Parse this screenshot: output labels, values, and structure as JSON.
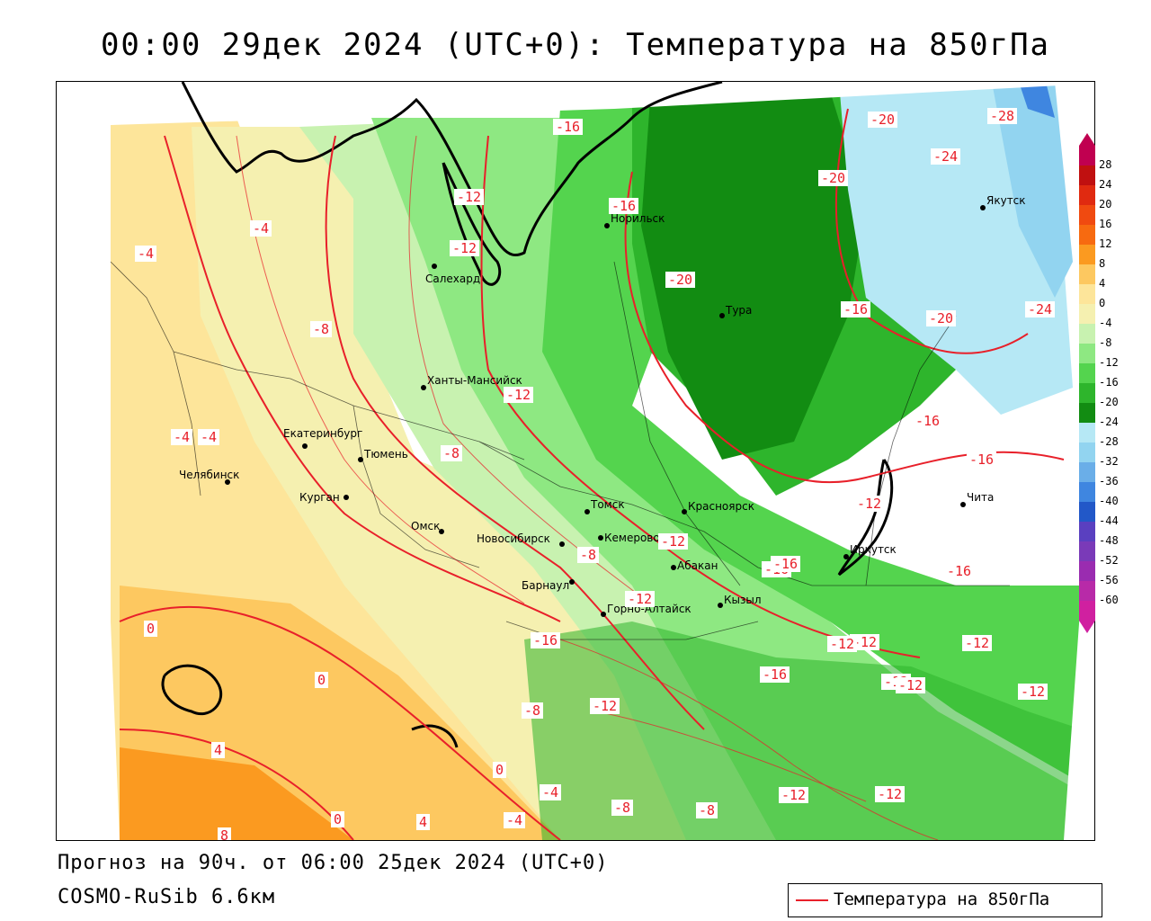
{
  "title": "00:00 29дек 2024 (UTC+0): Температура на 850гПа",
  "footer": {
    "forecast": "Прогноз на 90ч. от 06:00 25дек 2024 (UTC+0)",
    "model": "COSMO-RuSib 6.6км"
  },
  "legend": {
    "label": "Температура на 850гПа",
    "line_color": "#e8202a"
  },
  "colorbar": {
    "ticks": [
      "28",
      "24",
      "20",
      "16",
      "12",
      "8",
      "4",
      "0",
      "-4",
      "-8",
      "-12",
      "-16",
      "-20",
      "-24",
      "-28",
      "-32",
      "-36",
      "-40",
      "-44",
      "-48",
      "-52",
      "-56",
      "-60"
    ],
    "colors": [
      "#c00050",
      "#c01010",
      "#e02a10",
      "#f04a10",
      "#f76a10",
      "#fb9a20",
      "#fdc860",
      "#fde59a",
      "#f5f0b0",
      "#c8f2b0",
      "#8ee882",
      "#54d44e",
      "#2eb52c",
      "#128c12",
      "#b6e8f5",
      "#92d4f0",
      "#6aaee8",
      "#3f86e0",
      "#2258c8",
      "#5a40c0",
      "#7a3ab8",
      "#9a2cb0",
      "#b82aa8",
      "#d020a0"
    ]
  },
  "cities": [
    {
      "name": "Норильск"
    },
    {
      "name": "Салехард"
    },
    {
      "name": "Тура"
    },
    {
      "name": "Якутск"
    },
    {
      "name": "Ханты-Мансийск"
    },
    {
      "name": "Екатеринбург"
    },
    {
      "name": "Тюмень"
    },
    {
      "name": "Челябинск"
    },
    {
      "name": "Курган"
    },
    {
      "name": "Омск"
    },
    {
      "name": "Новосибирск"
    },
    {
      "name": "Томск"
    },
    {
      "name": "Кемерово"
    },
    {
      "name": "Красноярск"
    },
    {
      "name": "Абакан"
    },
    {
      "name": "Барнаул"
    },
    {
      "name": "Горно-Алтайск"
    },
    {
      "name": "Кызыл"
    },
    {
      "name": "Иркутск"
    },
    {
      "name": "Чита"
    }
  ],
  "isotherm_labels": [
    "-16",
    "-20",
    "-28",
    "-24",
    "-20",
    "-12",
    "-16",
    "-12",
    "-20",
    "-16",
    "-20",
    "-24",
    "-4",
    "-4",
    "-8",
    "-12",
    "-16",
    "-16",
    "-12",
    "-8",
    "-4",
    "-4",
    "-12",
    "-8",
    "-12",
    "-16",
    "-16",
    "-12",
    "-16",
    "0",
    "0",
    "-8",
    "-12",
    "-16",
    "-12",
    "-12",
    "-12",
    "-16",
    "-12",
    "-12",
    "4",
    "0",
    "-4",
    "-8",
    "-12",
    "-12",
    "-8",
    "-4",
    "8",
    "0",
    "4"
  ]
}
